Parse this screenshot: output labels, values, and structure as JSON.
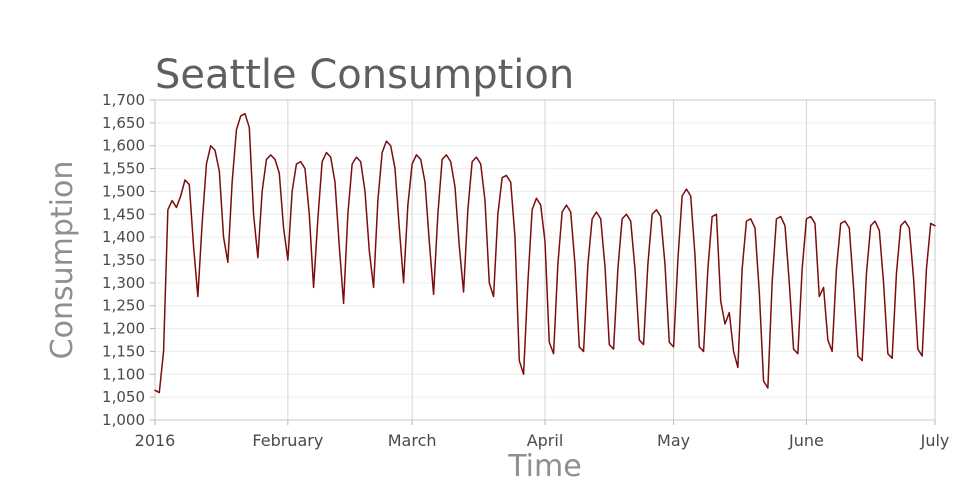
{
  "chart_data": {
    "type": "line",
    "title": "Seattle Consumption",
    "xlabel": "Time",
    "ylabel": "Consumption",
    "x_unit": "days-from-2016-01-01",
    "xlim": [
      0,
      182
    ],
    "ylim": [
      1000,
      1700
    ],
    "grid": true,
    "legend": "none",
    "x_ticks": [
      {
        "x": 0,
        "label": "2016"
      },
      {
        "x": 31,
        "label": "February"
      },
      {
        "x": 60,
        "label": "March"
      },
      {
        "x": 91,
        "label": "April"
      },
      {
        "x": 121,
        "label": "May"
      },
      {
        "x": 152,
        "label": "June"
      },
      {
        "x": 182,
        "label": "July"
      }
    ],
    "y_ticks": [
      {
        "value": 1000,
        "label": "1,000"
      },
      {
        "value": 1050,
        "label": "1,050"
      },
      {
        "value": 1100,
        "label": "1,100"
      },
      {
        "value": 1150,
        "label": "1,150"
      },
      {
        "value": 1200,
        "label": "1,200"
      },
      {
        "value": 1250,
        "label": "1,250"
      },
      {
        "value": 1300,
        "label": "1,300"
      },
      {
        "value": 1350,
        "label": "1,350"
      },
      {
        "value": 1400,
        "label": "1,400"
      },
      {
        "value": 1450,
        "label": "1,450"
      },
      {
        "value": 1500,
        "label": "1,500"
      },
      {
        "value": 1550,
        "label": "1,550"
      },
      {
        "value": 1600,
        "label": "1,600"
      },
      {
        "value": 1650,
        "label": "1,650"
      },
      {
        "value": 1700,
        "label": "1,700"
      }
    ],
    "series": [
      {
        "name": "Seattle Consumption",
        "points": [
          [
            0,
            1065
          ],
          [
            1,
            1060
          ],
          [
            2,
            1150
          ],
          [
            3,
            1460
          ],
          [
            4,
            1480
          ],
          [
            5,
            1465
          ],
          [
            6,
            1490
          ],
          [
            7,
            1525
          ],
          [
            8,
            1515
          ],
          [
            9,
            1380
          ],
          [
            10,
            1270
          ],
          [
            11,
            1430
          ],
          [
            12,
            1560
          ],
          [
            13,
            1600
          ],
          [
            14,
            1590
          ],
          [
            15,
            1545
          ],
          [
            16,
            1400
          ],
          [
            17,
            1345
          ],
          [
            18,
            1520
          ],
          [
            19,
            1635
          ],
          [
            20,
            1665
          ],
          [
            21,
            1670
          ],
          [
            22,
            1640
          ],
          [
            23,
            1450
          ],
          [
            24,
            1355
          ],
          [
            25,
            1500
          ],
          [
            26,
            1570
          ],
          [
            27,
            1580
          ],
          [
            28,
            1570
          ],
          [
            29,
            1540
          ],
          [
            30,
            1420
          ],
          [
            31,
            1350
          ],
          [
            32,
            1500
          ],
          [
            33,
            1560
          ],
          [
            34,
            1565
          ],
          [
            35,
            1550
          ],
          [
            36,
            1450
          ],
          [
            37,
            1290
          ],
          [
            38,
            1440
          ],
          [
            39,
            1565
          ],
          [
            40,
            1585
          ],
          [
            41,
            1575
          ],
          [
            42,
            1520
          ],
          [
            43,
            1380
          ],
          [
            44,
            1255
          ],
          [
            45,
            1450
          ],
          [
            46,
            1560
          ],
          [
            47,
            1575
          ],
          [
            48,
            1565
          ],
          [
            49,
            1500
          ],
          [
            50,
            1370
          ],
          [
            51,
            1290
          ],
          [
            52,
            1480
          ],
          [
            53,
            1585
          ],
          [
            54,
            1610
          ],
          [
            55,
            1600
          ],
          [
            56,
            1550
          ],
          [
            57,
            1420
          ],
          [
            58,
            1300
          ],
          [
            59,
            1470
          ],
          [
            60,
            1560
          ],
          [
            61,
            1580
          ],
          [
            62,
            1570
          ],
          [
            63,
            1520
          ],
          [
            64,
            1390
          ],
          [
            65,
            1275
          ],
          [
            66,
            1450
          ],
          [
            67,
            1570
          ],
          [
            68,
            1580
          ],
          [
            69,
            1565
          ],
          [
            70,
            1510
          ],
          [
            71,
            1380
          ],
          [
            72,
            1280
          ],
          [
            73,
            1460
          ],
          [
            74,
            1565
          ],
          [
            75,
            1575
          ],
          [
            76,
            1560
          ],
          [
            77,
            1480
          ],
          [
            78,
            1300
          ],
          [
            79,
            1270
          ],
          [
            80,
            1450
          ],
          [
            81,
            1530
          ],
          [
            82,
            1535
          ],
          [
            83,
            1520
          ],
          [
            84,
            1400
          ],
          [
            85,
            1130
          ],
          [
            86,
            1100
          ],
          [
            87,
            1300
          ],
          [
            88,
            1460
          ],
          [
            89,
            1485
          ],
          [
            90,
            1470
          ],
          [
            91,
            1390
          ],
          [
            92,
            1170
          ],
          [
            93,
            1145
          ],
          [
            94,
            1340
          ],
          [
            95,
            1455
          ],
          [
            96,
            1470
          ],
          [
            97,
            1455
          ],
          [
            98,
            1340
          ],
          [
            99,
            1160
          ],
          [
            100,
            1150
          ],
          [
            101,
            1340
          ],
          [
            102,
            1440
          ],
          [
            103,
            1455
          ],
          [
            104,
            1440
          ],
          [
            105,
            1335
          ],
          [
            106,
            1165
          ],
          [
            107,
            1155
          ],
          [
            108,
            1330
          ],
          [
            109,
            1440
          ],
          [
            110,
            1450
          ],
          [
            111,
            1435
          ],
          [
            112,
            1330
          ],
          [
            113,
            1175
          ],
          [
            114,
            1165
          ],
          [
            115,
            1340
          ],
          [
            116,
            1450
          ],
          [
            117,
            1460
          ],
          [
            118,
            1445
          ],
          [
            119,
            1340
          ],
          [
            120,
            1170
          ],
          [
            121,
            1160
          ],
          [
            122,
            1350
          ],
          [
            123,
            1490
          ],
          [
            124,
            1505
          ],
          [
            125,
            1490
          ],
          [
            126,
            1360
          ],
          [
            127,
            1160
          ],
          [
            128,
            1150
          ],
          [
            129,
            1330
          ],
          [
            130,
            1445
          ],
          [
            131,
            1450
          ],
          [
            132,
            1260
          ],
          [
            133,
            1210
          ],
          [
            134,
            1235
          ],
          [
            135,
            1150
          ],
          [
            136,
            1115
          ],
          [
            137,
            1330
          ],
          [
            138,
            1435
          ],
          [
            139,
            1440
          ],
          [
            140,
            1420
          ],
          [
            141,
            1280
          ],
          [
            142,
            1085
          ],
          [
            143,
            1070
          ],
          [
            144,
            1300
          ],
          [
            145,
            1440
          ],
          [
            146,
            1445
          ],
          [
            147,
            1425
          ],
          [
            148,
            1300
          ],
          [
            149,
            1155
          ],
          [
            150,
            1145
          ],
          [
            151,
            1330
          ],
          [
            152,
            1440
          ],
          [
            153,
            1445
          ],
          [
            154,
            1430
          ],
          [
            155,
            1270
          ],
          [
            156,
            1290
          ],
          [
            157,
            1175
          ],
          [
            158,
            1150
          ],
          [
            159,
            1330
          ],
          [
            160,
            1430
          ],
          [
            161,
            1435
          ],
          [
            162,
            1420
          ],
          [
            163,
            1290
          ],
          [
            164,
            1140
          ],
          [
            165,
            1130
          ],
          [
            166,
            1320
          ],
          [
            167,
            1425
          ],
          [
            168,
            1435
          ],
          [
            169,
            1415
          ],
          [
            170,
            1300
          ],
          [
            171,
            1145
          ],
          [
            172,
            1135
          ],
          [
            173,
            1320
          ],
          [
            174,
            1425
          ],
          [
            175,
            1435
          ],
          [
            176,
            1420
          ],
          [
            177,
            1310
          ],
          [
            178,
            1155
          ],
          [
            179,
            1140
          ],
          [
            180,
            1330
          ],
          [
            181,
            1430
          ],
          [
            182,
            1425
          ]
        ]
      }
    ],
    "colors": {
      "line": "#7c0d0d",
      "title": "#5f5f5f",
      "axis_title": "#8f8f8f",
      "tick_label": "#4a4a4a",
      "h_grid": "#ededed",
      "v_grid": "#d4d4d4",
      "frame": "#c9c9c9"
    }
  }
}
